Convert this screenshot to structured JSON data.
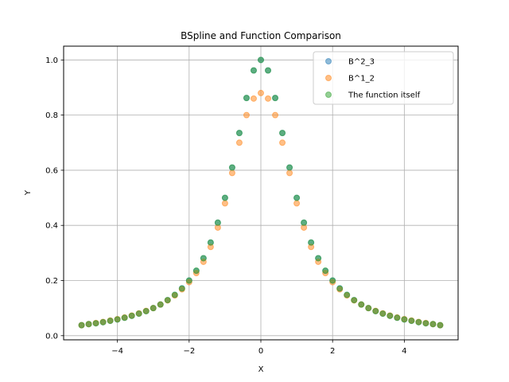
{
  "chart_data": {
    "type": "scatter",
    "title": "BSpline and Function Comparison",
    "xlabel": "X",
    "ylabel": "Y",
    "xlim": [
      -5.5,
      5.5
    ],
    "ylim": [
      -0.015,
      1.05
    ],
    "xticks": [
      -4,
      -2,
      0,
      2,
      4
    ],
    "xtick_labels": [
      "−4",
      "−2",
      "0",
      "2",
      "4"
    ],
    "yticks": [
      0.0,
      0.2,
      0.4,
      0.6,
      0.8,
      1.0
    ],
    "ytick_labels": [
      "0.0",
      "0.2",
      "0.4",
      "0.6",
      "0.8",
      "1.0"
    ],
    "grid": true,
    "legend_position": "top-right",
    "x": [
      -5.0,
      -4.8,
      -4.6,
      -4.4,
      -4.2,
      -4.0,
      -3.8,
      -3.6,
      -3.4,
      -3.2,
      -3.0,
      -2.8,
      -2.6,
      -2.4,
      -2.2,
      -2.0,
      -1.8,
      -1.6,
      -1.4,
      -1.2,
      -1.0,
      -0.8,
      -0.6,
      -0.4,
      -0.2,
      0.0,
      0.2,
      0.4,
      0.6,
      0.8,
      1.0,
      1.2,
      1.4,
      1.6,
      1.8,
      2.0,
      2.2,
      2.4,
      2.6,
      2.8,
      3.0,
      3.2,
      3.4,
      3.6,
      3.8,
      4.0,
      4.2,
      4.4,
      4.6,
      4.8,
      5.0
    ],
    "series": [
      {
        "name": "B^2_3",
        "color": "#1f77b4",
        "values": [
          0.038,
          0.042,
          0.045,
          0.049,
          0.054,
          0.059,
          0.065,
          0.072,
          0.08,
          0.089,
          0.1,
          0.113,
          0.129,
          0.148,
          0.172,
          0.2,
          0.235,
          0.281,
          0.338,
          0.41,
          0.5,
          0.61,
          0.735,
          0.862,
          0.962,
          1.0,
          0.962,
          0.862,
          0.735,
          0.61,
          0.5,
          0.41,
          0.338,
          0.281,
          0.235,
          0.2,
          0.172,
          0.148,
          0.129,
          0.113,
          0.1,
          0.089,
          0.08,
          0.072,
          0.065,
          0.059,
          0.054,
          0.049,
          0.045,
          0.042,
          0.038
        ]
      },
      {
        "name": "B^1_2",
        "color": "#ff7f0e",
        "values": [
          0.038,
          0.042,
          0.046,
          0.05,
          0.055,
          0.06,
          0.066,
          0.073,
          0.081,
          0.09,
          0.1,
          0.113,
          0.128,
          0.146,
          0.168,
          0.194,
          0.227,
          0.268,
          0.322,
          0.392,
          0.48,
          0.59,
          0.7,
          0.8,
          0.86,
          0.88,
          0.86,
          0.8,
          0.7,
          0.59,
          0.48,
          0.392,
          0.322,
          0.268,
          0.227,
          0.194,
          0.168,
          0.146,
          0.128,
          0.113,
          0.1,
          0.09,
          0.081,
          0.073,
          0.066,
          0.06,
          0.055,
          0.05,
          0.046,
          0.042,
          0.038
        ]
      },
      {
        "name": "The function itself",
        "color": "#2ca02c",
        "values": [
          0.038,
          0.042,
          0.045,
          0.049,
          0.054,
          0.059,
          0.065,
          0.072,
          0.08,
          0.089,
          0.1,
          0.113,
          0.129,
          0.148,
          0.171,
          0.2,
          0.236,
          0.281,
          0.338,
          0.41,
          0.5,
          0.61,
          0.735,
          0.862,
          0.962,
          1.0,
          0.962,
          0.862,
          0.735,
          0.61,
          0.5,
          0.41,
          0.338,
          0.281,
          0.236,
          0.2,
          0.171,
          0.148,
          0.129,
          0.113,
          0.1,
          0.089,
          0.08,
          0.072,
          0.065,
          0.059,
          0.054,
          0.049,
          0.045,
          0.042,
          0.038
        ]
      }
    ]
  }
}
